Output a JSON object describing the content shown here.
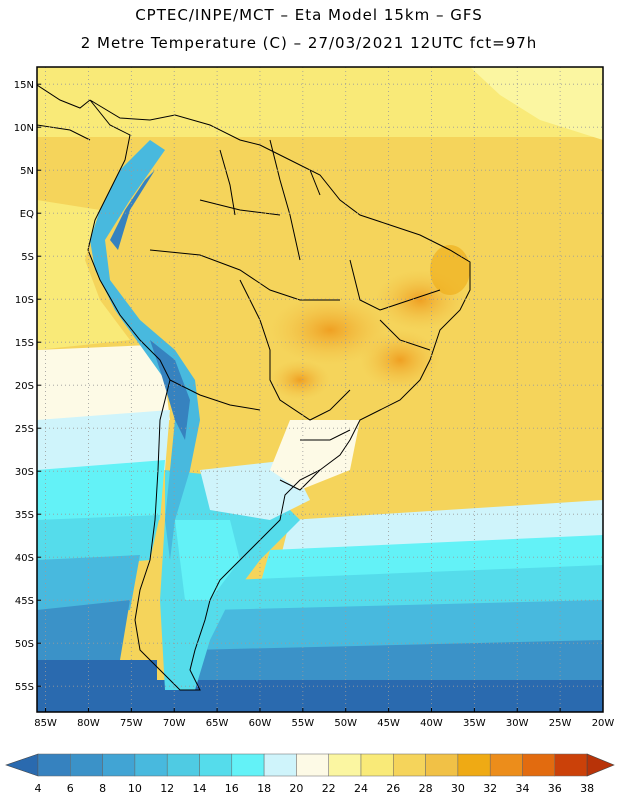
{
  "header": {
    "line1": "CPTEC/INPE/MCT –  Eta Model 15km – GFS",
    "line2": "2 Metre Temperature (C) – 27/03/2021 12UTC fct=97h"
  },
  "map": {
    "lon_range": [
      -86,
      -20
    ],
    "lat_range": [
      -58,
      17
    ],
    "lat_labels": [
      "15N",
      "10N",
      "5N",
      "EQ",
      "5S",
      "10S",
      "15S",
      "20S",
      "25S",
      "30S",
      "35S",
      "40S",
      "45S",
      "50S",
      "55S"
    ],
    "lat_values": [
      15,
      10,
      5,
      0,
      -5,
      -10,
      -15,
      -20,
      -25,
      -30,
      -35,
      -40,
      -45,
      -50,
      -55
    ],
    "lon_labels": [
      "85W",
      "80W",
      "75W",
      "70W",
      "65W",
      "60W",
      "55W",
      "50W",
      "45W",
      "40W",
      "35W",
      "30W",
      "25W",
      "20W"
    ],
    "lon_values": [
      -85,
      -80,
      -75,
      -70,
      -65,
      -60,
      -55,
      -50,
      -45,
      -40,
      -35,
      -30,
      -25,
      -20
    ]
  },
  "colorbar": {
    "labels": [
      "4",
      "6",
      "8",
      "10",
      "12",
      "14",
      "16",
      "18",
      "20",
      "22",
      "24",
      "26",
      "28",
      "30",
      "32",
      "34",
      "36",
      "38"
    ],
    "colors": [
      "#2a6aaf",
      "#3682bf",
      "#3b92c8",
      "#41a4d4",
      "#48b9de",
      "#4fcbe3",
      "#55dceb",
      "#63f2f7",
      "#cff4fb",
      "#fdfae6",
      "#fbf6a1",
      "#f9ea78",
      "#f5d45b",
      "#f1c146",
      "#efaa14",
      "#ec8d1b",
      "#e26b0f",
      "#cb4109",
      "#b83308"
    ]
  }
}
